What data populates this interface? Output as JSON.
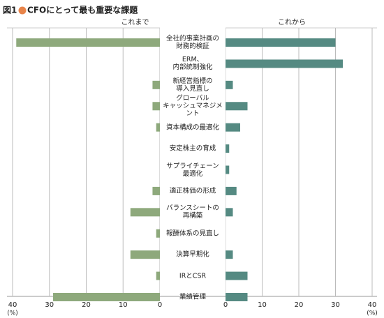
{
  "chart_data": {
    "type": "butterfly",
    "figure_label": "図1",
    "title": "CFOにとって最も重要な課題",
    "categories": [
      "全社的事業計画の\n財務的検証",
      "ERM、\n内部統制強化",
      "新経営指標の\n導入見直し",
      "グローバル\nキャッシュマネジメント",
      "資本構成の最適化",
      "安定株主の育成",
      "サプライチェーン\n最適化",
      "適正株価の形成",
      "バランスシートの\n再構築",
      "報酬体系の見直し",
      "決算早期化",
      "IRとCSR",
      "業績管理"
    ],
    "series": [
      {
        "name": "これまで",
        "color": "#8ea97c",
        "side": "left",
        "values": [
          39,
          0,
          2,
          2,
          1,
          0,
          0,
          2,
          8,
          1,
          8,
          1,
          29
        ]
      },
      {
        "name": "これから",
        "color": "#558a82",
        "side": "right",
        "values": [
          30,
          32,
          2,
          6,
          4,
          1,
          1,
          3,
          2,
          0,
          2,
          6,
          6
        ]
      }
    ],
    "xlim": [
      0,
      40
    ],
    "xticks": [
      0,
      10,
      20,
      30,
      40
    ],
    "unit": "(%)",
    "grid": true
  }
}
